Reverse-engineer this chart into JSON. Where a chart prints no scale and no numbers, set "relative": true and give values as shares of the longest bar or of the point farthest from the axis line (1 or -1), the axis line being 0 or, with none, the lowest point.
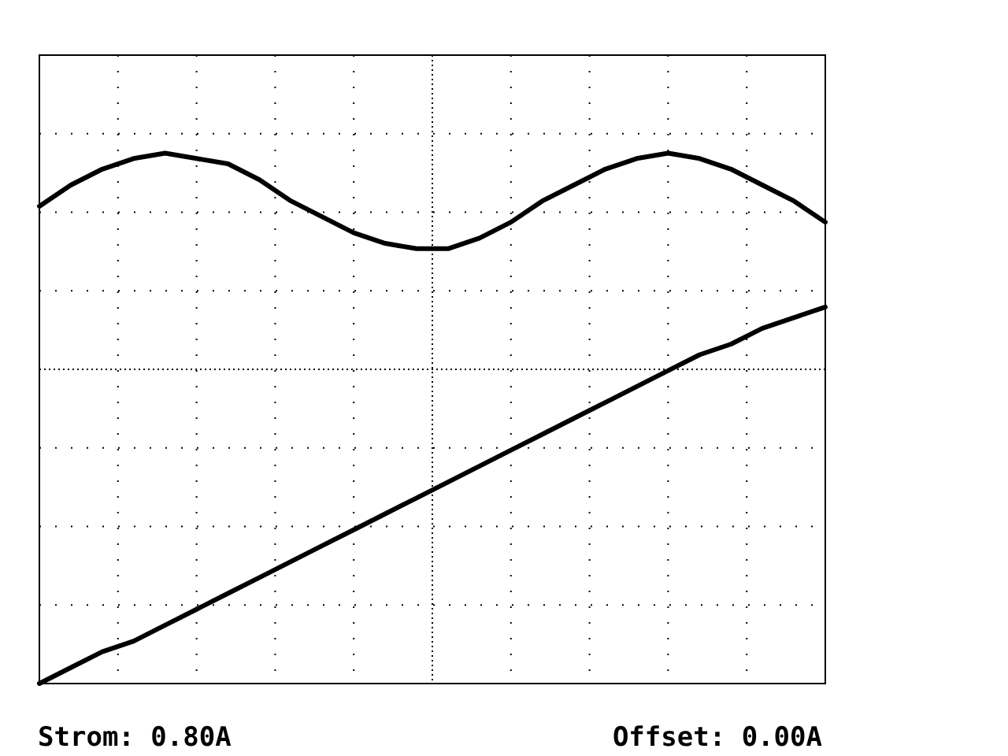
{
  "chart_data": {
    "type": "line",
    "relative": true,
    "grid": true,
    "marker": "none",
    "line_style": "solid",
    "categories": [
      null,
      null,
      null,
      null,
      null,
      null,
      null,
      null,
      null,
      null,
      null,
      null,
      null,
      null,
      null,
      null,
      null,
      null,
      null,
      null,
      null,
      null,
      null,
      null,
      null,
      null
    ],
    "series": [
      {
        "color": "#000000",
        "values": [
          0.9,
          0.94,
          0.97,
          0.99,
          1,
          0.99,
          0.98,
          0.95,
          0.91,
          0.88,
          0.85,
          0.83,
          0.82,
          0.82,
          0.84,
          0.87,
          0.91,
          0.94,
          0.97,
          0.99,
          1,
          0.99,
          0.97,
          0.94,
          0.91,
          0.87
        ]
      },
      {
        "color": "#000000",
        "values": [
          0,
          0.03,
          0.06,
          0.08,
          0.11,
          0.14,
          0.17,
          0.2,
          0.23,
          0.26,
          0.29,
          0.32,
          0.35,
          0.38,
          0.41,
          0.44,
          0.47,
          0.5,
          0.53,
          0.56,
          0.59,
          0.62,
          0.64,
          0.67,
          0.69,
          0.71
        ]
      }
    ],
    "annotations": [
      "Strom: 0.80A",
      "Offset: 0.00A"
    ]
  }
}
